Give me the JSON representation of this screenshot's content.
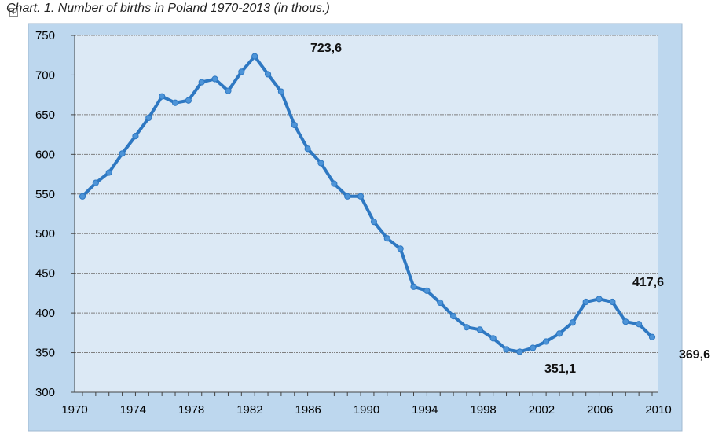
{
  "chart_data": {
    "type": "line",
    "title": "Chart. 1. Number of births in Poland 1970-2013 (in thous.)",
    "xlabel": "",
    "ylabel": "",
    "xlim": [
      1970,
      2010
    ],
    "ylim": [
      300,
      750
    ],
    "grid": true,
    "legend": "none",
    "y_ticks": [
      300,
      350,
      400,
      450,
      500,
      550,
      600,
      650,
      700,
      750
    ],
    "x_ticks": [
      1970,
      1974,
      1978,
      1982,
      1986,
      1990,
      1994,
      1998,
      2002,
      2006,
      2010
    ],
    "series": [
      {
        "color": "#2e78c2",
        "x": [
          1970,
          1971,
          1972,
          1973,
          1974,
          1975,
          1976,
          1977,
          1978,
          1979,
          1980,
          1981,
          1982,
          1983,
          1984,
          1985,
          1986,
          1987,
          1988,
          1989,
          1990,
          1991,
          1992,
          1993,
          1994,
          1995,
          1996,
          1997,
          1998,
          1999,
          2000,
          2001,
          2002,
          2003,
          2004,
          2005,
          2006,
          2007,
          2008,
          2009,
          2010,
          2011,
          2012,
          2013
        ],
        "values": [
          547,
          564,
          577,
          601,
          623,
          646,
          673,
          665,
          668,
          691,
          695,
          680,
          704,
          723.6,
          701,
          679,
          637,
          607,
          589,
          563,
          547,
          547,
          515,
          494,
          481,
          433,
          428,
          413,
          396,
          382,
          379,
          368,
          354,
          351.1,
          356,
          364,
          374,
          388,
          414,
          417.6,
          414,
          389,
          386,
          369.6
        ]
      }
    ],
    "annotations": [
      {
        "text": "723,6",
        "x": 1983,
        "y": 723.6
      },
      {
        "text": "417,6",
        "x": 2009,
        "y": 417.6
      },
      {
        "text": "351,1",
        "x": 2003,
        "y": 351.1
      },
      {
        "text": "369,6",
        "x": 2013,
        "y": 369.6
      }
    ]
  }
}
